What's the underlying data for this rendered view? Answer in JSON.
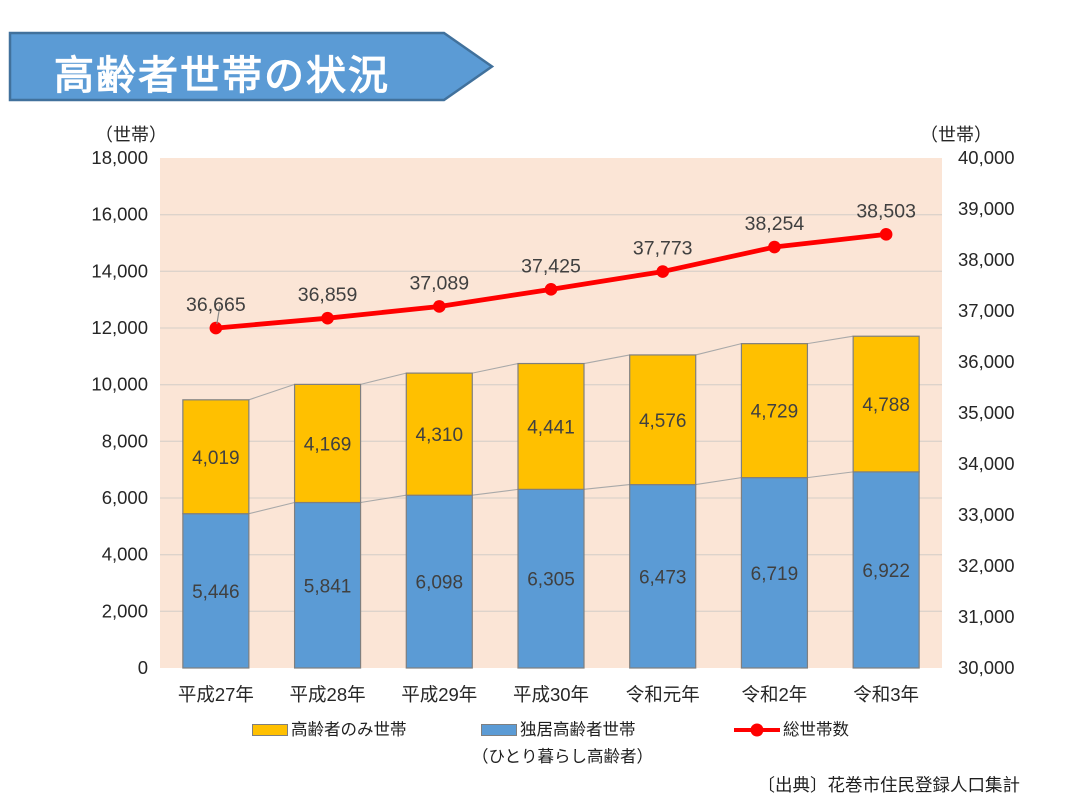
{
  "banner": {
    "title": "高齢者世帯の状況"
  },
  "colors": {
    "banner_fill": "#5B9BD5",
    "banner_border": "#41719C",
    "bar_blue": "#5B9BD5",
    "bar_yellow": "#FFC000",
    "bar_border": "#7F7F7F",
    "line_red": "#FF0000",
    "plot_bg": "#FBE5D6",
    "gridline": "#DDD3CB",
    "connector": "#A9A9A9",
    "axis_text": "#262626",
    "label_text": "#404040"
  },
  "axes": {
    "left_unit": "（世帯）",
    "right_unit": "（世帯）",
    "left_ticks": [
      "0",
      "2,000",
      "4,000",
      "6,000",
      "8,000",
      "10,000",
      "12,000",
      "14,000",
      "16,000",
      "18,000"
    ],
    "right_ticks": [
      "30,000",
      "31,000",
      "32,000",
      "33,000",
      "34,000",
      "35,000",
      "36,000",
      "37,000",
      "38,000",
      "39,000",
      "40,000"
    ]
  },
  "chart_data": {
    "type": "bar",
    "subtype": "stacked-bar-with-line-combo",
    "title": "高齢者世帯の状況",
    "categories": [
      "平成27年",
      "平成28年",
      "平成29年",
      "平成30年",
      "令和元年",
      "令和2年",
      "令和3年"
    ],
    "series": [
      {
        "name": "独居高齢者世帯（ひとり暮らし高齢者）",
        "type": "bar",
        "stack": true,
        "axis": "left",
        "color": "#5B9BD5",
        "values": [
          5446,
          5841,
          6098,
          6305,
          6473,
          6719,
          6922
        ]
      },
      {
        "name": "高齢者のみ世帯",
        "type": "bar",
        "stack": true,
        "axis": "left",
        "color": "#FFC000",
        "values": [
          4019,
          4169,
          4310,
          4441,
          4576,
          4729,
          4788
        ]
      },
      {
        "name": "総世帯数",
        "type": "line",
        "axis": "right",
        "color": "#FF0000",
        "values": [
          36665,
          36859,
          37089,
          37425,
          37773,
          38254,
          38503
        ]
      }
    ],
    "left_axis": {
      "label": "（世帯）",
      "min": 0,
      "max": 18000,
      "step": 2000
    },
    "right_axis": {
      "label": "（世帯）",
      "min": 30000,
      "max": 40000,
      "step": 1000
    },
    "grid": true,
    "legend_position": "bottom"
  },
  "legend": {
    "items": [
      {
        "label": "高齢者のみ世帯",
        "swatch": "bar",
        "color": "#FFC000"
      },
      {
        "label": "独居高齢者世帯",
        "sublabel": "（ひとり暮らし高齢者）",
        "swatch": "bar",
        "color": "#5B9BD5"
      },
      {
        "label": "総世帯数",
        "swatch": "line",
        "color": "#FF0000"
      }
    ]
  },
  "source": "〔出典〕花巻市住民登録人口集計"
}
